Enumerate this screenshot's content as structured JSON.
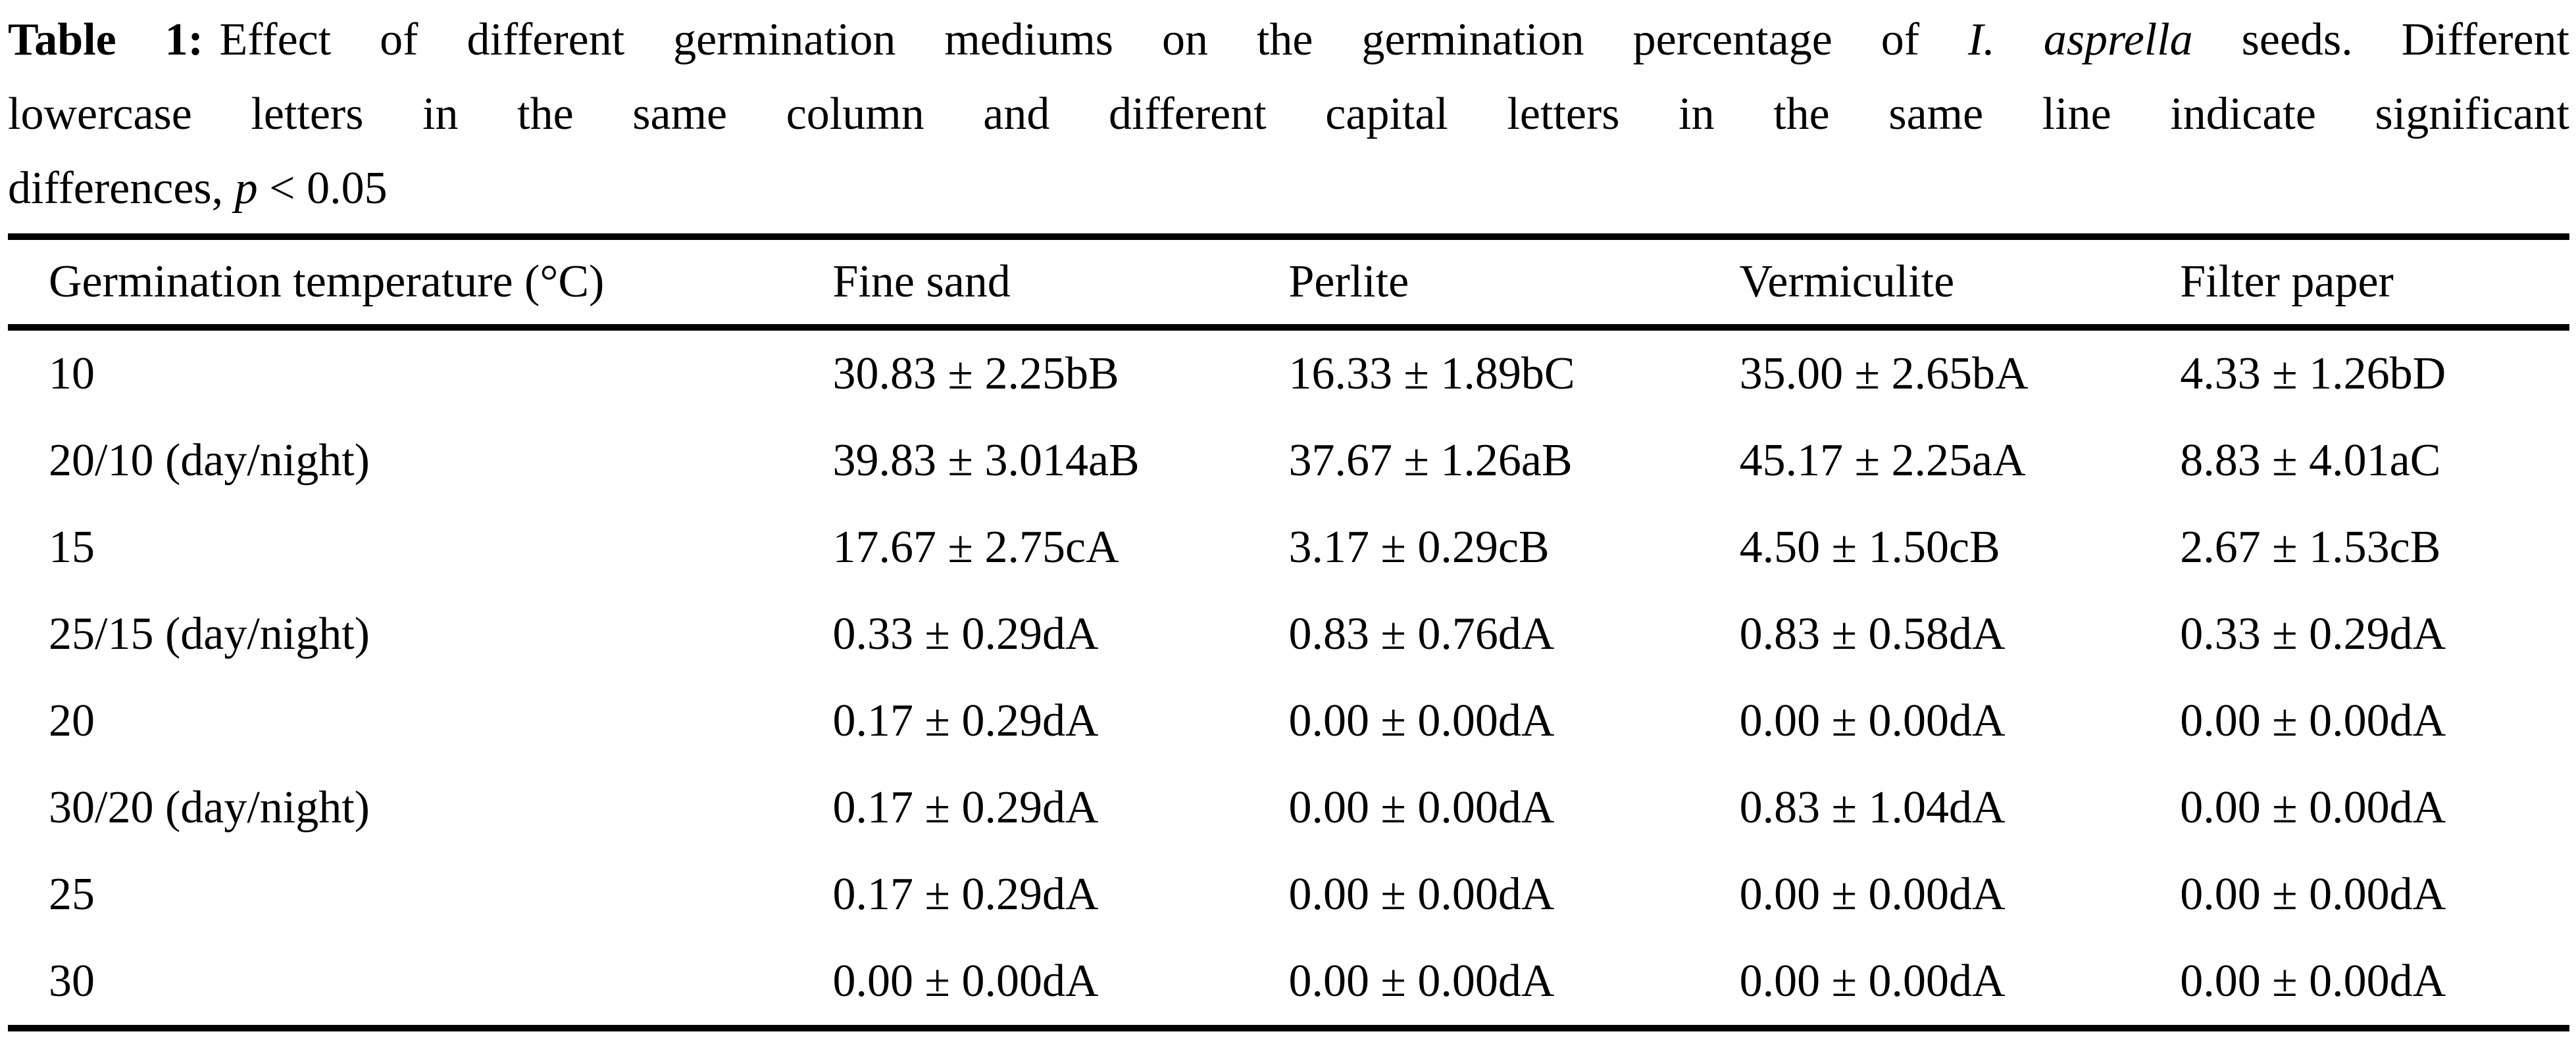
{
  "caption": {
    "line1": {
      "label": "Table 1:",
      "text_before_species": "Effect of different germination mediums on the germination percentage of ",
      "species": "I. asprella",
      "text_after_species": " seeds. Different"
    },
    "line2": "lowercase letters in the same column and different capital letters in the same line indicate significant",
    "line3": {
      "text": "differences, ",
      "p_symbol": "p",
      "rest": " < 0.05"
    }
  },
  "table": {
    "columns": [
      "Germination temperature (°C)",
      "Fine sand",
      "Perlite",
      "Vermiculite",
      "Filter paper"
    ],
    "rows": [
      {
        "temperature": "10",
        "values": [
          "30.83 ± 2.25bB",
          "16.33 ± 1.89bC",
          "35.00 ± 2.65bA",
          "4.33 ± 1.26bD"
        ]
      },
      {
        "temperature": "20/10 (day/night)",
        "values": [
          "39.83 ± 3.014aB",
          "37.67 ± 1.26aB",
          "45.17 ± 2.25aA",
          "8.83 ± 4.01aC"
        ]
      },
      {
        "temperature": "15",
        "values": [
          "17.67 ± 2.75cA",
          "3.17 ± 0.29cB",
          "4.50 ± 1.50cB",
          "2.67 ± 1.53cB"
        ]
      },
      {
        "temperature": "25/15 (day/night)",
        "values": [
          "0.33 ± 0.29dA",
          "0.83 ± 0.76dA",
          "0.83 ± 0.58dA",
          "0.33 ± 0.29dA"
        ]
      },
      {
        "temperature": "20",
        "values": [
          "0.17 ± 0.29dA",
          "0.00 ± 0.00dA",
          "0.00 ± 0.00dA",
          "0.00 ± 0.00dA"
        ]
      },
      {
        "temperature": "30/20 (day/night)",
        "values": [
          "0.17 ± 0.29dA",
          "0.00 ± 0.00dA",
          "0.83 ± 1.04dA",
          "0.00 ± 0.00dA"
        ]
      },
      {
        "temperature": "25",
        "values": [
          "0.17 ± 0.29dA",
          "0.00 ± 0.00dA",
          "0.00 ± 0.00dA",
          "0.00 ± 0.00dA"
        ]
      },
      {
        "temperature": "30",
        "values": [
          "0.00 ± 0.00dA",
          "0.00 ± 0.00dA",
          "0.00 ± 0.00dA",
          "0.00 ± 0.00dA"
        ]
      }
    ]
  }
}
